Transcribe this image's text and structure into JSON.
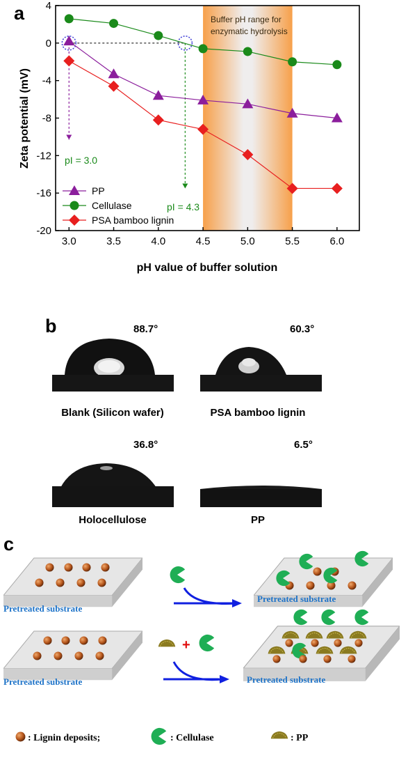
{
  "panels": {
    "a": "a",
    "b": "b",
    "c": "c"
  },
  "chart_data": {
    "type": "line",
    "xlabel": "pH value of buffer solution",
    "ylabel": "Zeta potential (mV)",
    "xlim": [
      2.85,
      6.25
    ],
    "ylim": [
      -20,
      4
    ],
    "x_ticks": [
      "3.0",
      "3.5",
      "4.0",
      "4.5",
      "5.0",
      "5.5",
      "6.0"
    ],
    "y_ticks": [
      "4",
      "0",
      "-4",
      "-8",
      "-12",
      "-16",
      "-20"
    ],
    "x": [
      3.0,
      3.5,
      4.0,
      4.5,
      5.0,
      5.5,
      6.0
    ],
    "series": [
      {
        "name": "PP",
        "color": "#8b1e9c",
        "marker": "triangle",
        "values": [
          0.2,
          -3.3,
          -5.6,
          -6.1,
          -6.5,
          -7.5,
          -8.0
        ]
      },
      {
        "name": "Cellulase",
        "color": "#1a8a1a",
        "marker": "circle",
        "values": [
          2.6,
          2.1,
          0.8,
          -0.6,
          -0.9,
          -2.0,
          -2.3
        ]
      },
      {
        "name": "PSA bamboo lignin",
        "color": "#e81f1f",
        "marker": "diamond",
        "values": [
          -1.9,
          -4.6,
          -8.2,
          -9.2,
          -11.9,
          -15.5,
          -15.5
        ]
      }
    ],
    "legend": "bottom-left",
    "shaded_region": {
      "x_range": [
        4.5,
        5.5
      ],
      "label_line1": "Buffer pH range for",
      "label_line2": "enzymatic hydrolysis"
    },
    "annotations": [
      {
        "text": "pI = 3.0",
        "x": 3.0,
        "color": "#1a8a1a"
      },
      {
        "text": "pI = 4.3",
        "x": 4.3,
        "color": "#1a8a1a"
      }
    ]
  },
  "contact_angles": [
    {
      "angle": "88.7°",
      "caption": "Blank (Silicon wafer)"
    },
    {
      "angle": "60.3°",
      "caption": "PSA bamboo lignin"
    },
    {
      "angle": "36.8°",
      "caption": "Holocellulose"
    },
    {
      "angle": "6.5°",
      "caption": "PP"
    }
  ],
  "scheme": {
    "substrate_label": "Pretreated substrate",
    "plus": "+",
    "legend": {
      "lignin": ": Lignin deposits;",
      "cellulase": ": Cellulase",
      "pp": ": PP"
    }
  }
}
